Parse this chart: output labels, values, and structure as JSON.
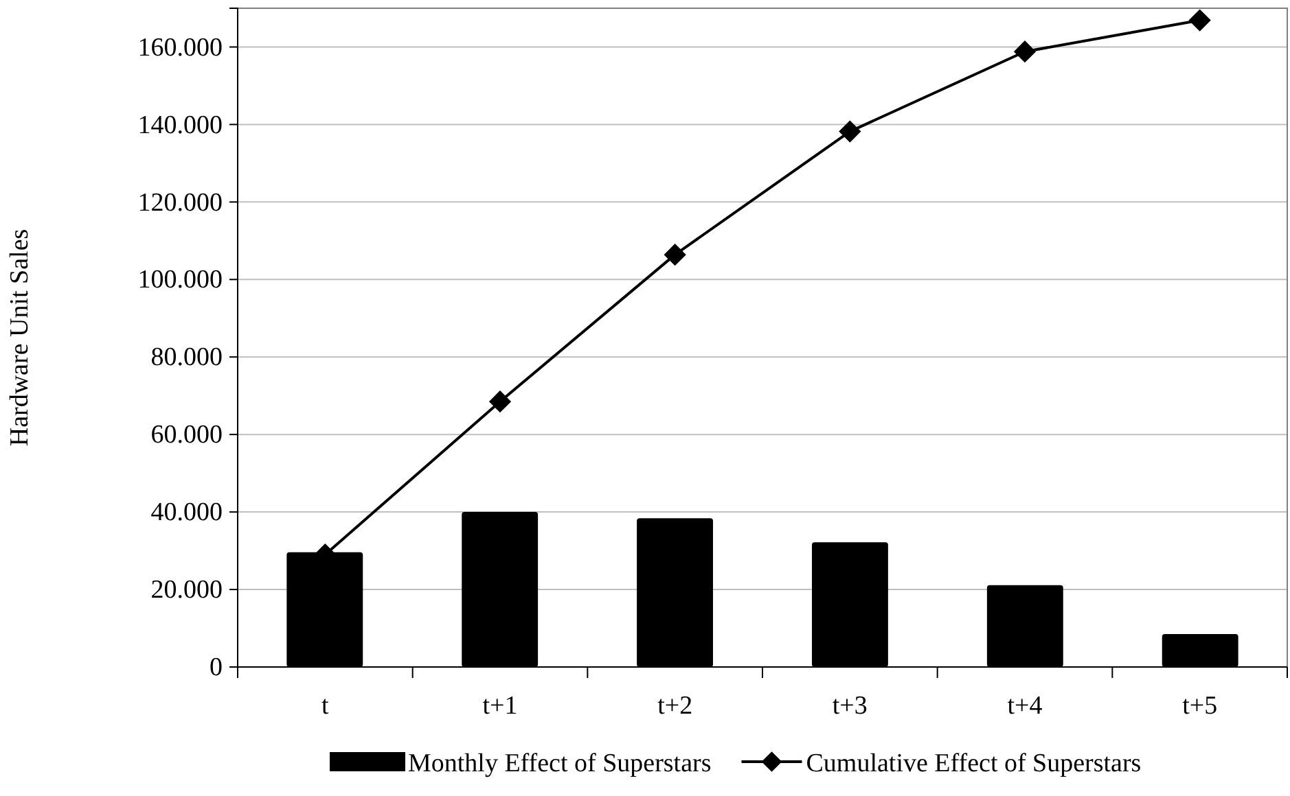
{
  "chart_data": {
    "type": "bar",
    "ylabel": "Hardware Unit Sales",
    "categories": [
      "t",
      "t+1",
      "t+2",
      "t+3",
      "t+4",
      "t+5"
    ],
    "series": [
      {
        "name": "Monthly Effect of Superstars",
        "color": "#000000",
        "values": [
          29600,
          40000,
          38400,
          32200,
          21100,
          8500
        ]
      },
      {
        "name": "Cumulative Effect of Superstars",
        "type": "line",
        "color": "#000000",
        "marker": "diamond",
        "values": [
          29000,
          68500,
          106400,
          138200,
          158800,
          166900
        ]
      }
    ],
    "ylim": [
      0,
      170000
    ],
    "yticks": [
      {
        "value": 0,
        "label": "0"
      },
      {
        "value": 20000,
        "label": "20.000"
      },
      {
        "value": 40000,
        "label": "40.000"
      },
      {
        "value": 60000,
        "label": "60.000"
      },
      {
        "value": 80000,
        "label": "80.000"
      },
      {
        "value": 100000,
        "label": "100.000"
      },
      {
        "value": 120000,
        "label": "120.000"
      },
      {
        "value": 140000,
        "label": "140.000"
      },
      {
        "value": 160000,
        "label": "160.000"
      }
    ],
    "grid": "y",
    "legend": "bottom"
  }
}
